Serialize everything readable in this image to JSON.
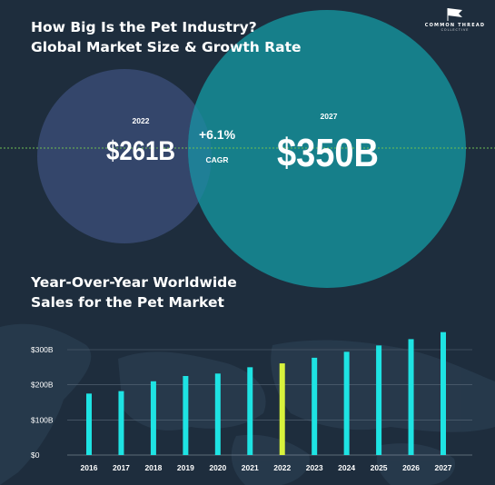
{
  "header": {
    "title_line1": "How Big Is the Pet Industry?",
    "title_line2": "Global Market Size & Growth Rate"
  },
  "logo": {
    "icon": "flag-icon",
    "name": "COMMON THREAD",
    "sub": "COLLECTIVE"
  },
  "venn": {
    "left": {
      "year": "2022",
      "value": "$261B"
    },
    "right": {
      "year": "2027",
      "value": "$350B"
    },
    "overlap": {
      "value": "+6.1%",
      "label": "CAGR"
    }
  },
  "section": {
    "title_line1": "Year-Over-Year Worldwide",
    "title_line2": "Sales for the Pet Market"
  },
  "colors": {
    "background": "#1e2d3d",
    "left_circle": "#34466b",
    "right_circle": "#167f8a",
    "overlap": "#1f7f96",
    "bar": "#1ee3e3",
    "highlight_bar": "#d8f23c",
    "divider": "#6fbf52"
  },
  "chart_data": {
    "type": "bar",
    "title": "Year-Over-Year Worldwide Sales for the Pet Market",
    "categories": [
      "2016",
      "2017",
      "2018",
      "2019",
      "2020",
      "2021",
      "2022",
      "2023",
      "2024",
      "2025",
      "2026",
      "2027"
    ],
    "values": [
      175,
      182,
      210,
      225,
      232,
      250,
      261,
      277,
      294,
      312,
      330,
      350
    ],
    "highlight_category": "2022",
    "ylim": [
      0,
      300
    ],
    "yticks": [
      0,
      100,
      200,
      300
    ],
    "ytick_labels": [
      "$0",
      "$100B",
      "$200B",
      "$300B"
    ],
    "grid": true
  }
}
